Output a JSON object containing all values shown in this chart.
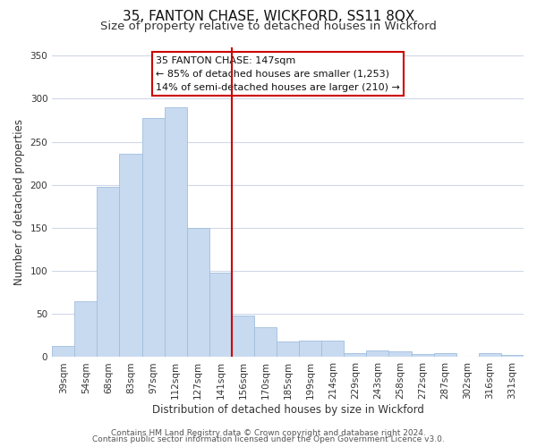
{
  "title": "35, FANTON CHASE, WICKFORD, SS11 8QX",
  "subtitle": "Size of property relative to detached houses in Wickford",
  "xlabel": "Distribution of detached houses by size in Wickford",
  "ylabel": "Number of detached properties",
  "bar_labels": [
    "39sqm",
    "54sqm",
    "68sqm",
    "83sqm",
    "97sqm",
    "112sqm",
    "127sqm",
    "141sqm",
    "156sqm",
    "170sqm",
    "185sqm",
    "199sqm",
    "214sqm",
    "229sqm",
    "243sqm",
    "258sqm",
    "272sqm",
    "287sqm",
    "302sqm",
    "316sqm",
    "331sqm"
  ],
  "bar_values": [
    13,
    65,
    198,
    236,
    278,
    290,
    150,
    98,
    48,
    35,
    18,
    19,
    19,
    5,
    8,
    7,
    4,
    5,
    0,
    5,
    3
  ],
  "bar_color": "#c8daf0",
  "bar_edge_color": "#a0bedd",
  "vline_x": 7.5,
  "vline_color": "#cc0000",
  "annotation_title": "35 FANTON CHASE: 147sqm",
  "annotation_line1": "← 85% of detached houses are smaller (1,253)",
  "annotation_line2": "14% of semi-detached houses are larger (210) →",
  "annotation_box_facecolor": "#ffffff",
  "annotation_box_edgecolor": "#cc0000",
  "ylim": [
    0,
    360
  ],
  "yticks": [
    0,
    50,
    100,
    150,
    200,
    250,
    300,
    350
  ],
  "footer1": "Contains HM Land Registry data © Crown copyright and database right 2024.",
  "footer2": "Contains public sector information licensed under the Open Government Licence v3.0.",
  "bg_color": "#ffffff",
  "plot_bg_color": "#ffffff",
  "grid_color": "#d0d8e8",
  "title_fontsize": 11,
  "subtitle_fontsize": 9.5,
  "axis_label_fontsize": 8.5,
  "tick_fontsize": 7.5,
  "footer_fontsize": 6.5,
  "annotation_fontsize": 8
}
